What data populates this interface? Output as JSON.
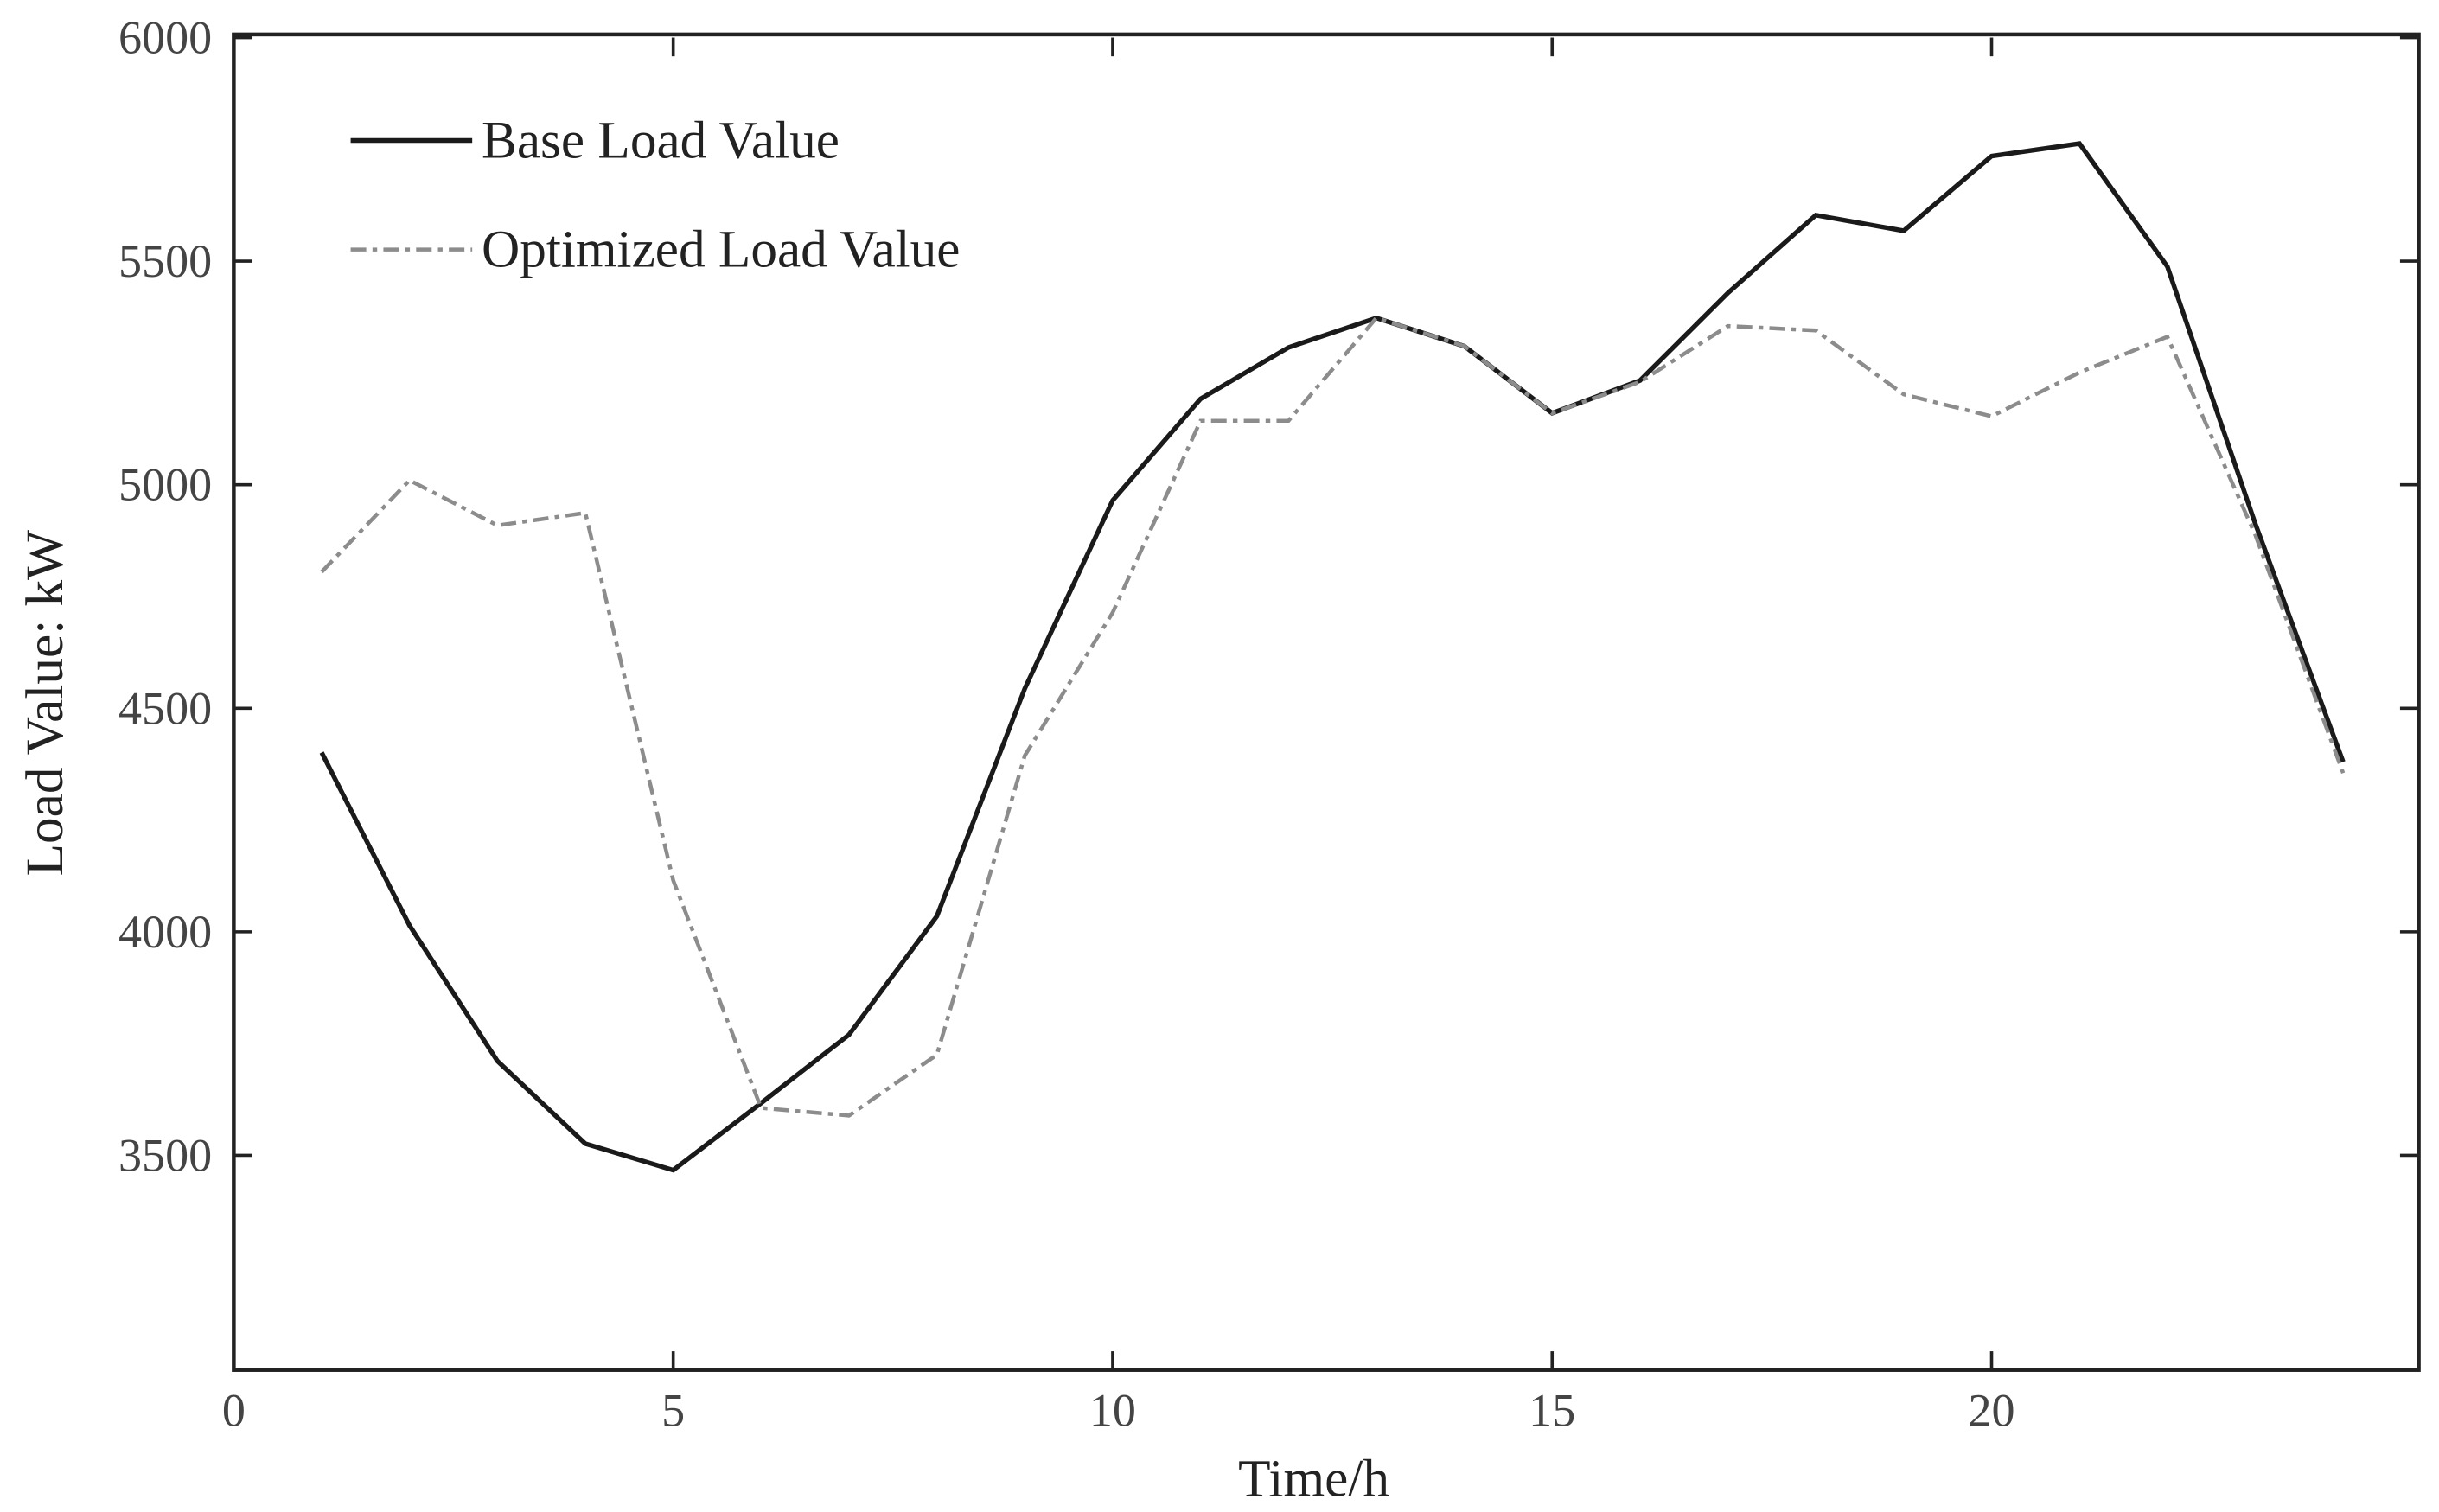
{
  "chart_data": {
    "type": "line",
    "x_label": "Time/h",
    "y_label": "Load Value: kW",
    "x": [
      1,
      2,
      3,
      4,
      5,
      6,
      7,
      8,
      9,
      10,
      11,
      12,
      13,
      14,
      15,
      16,
      17,
      18,
      19,
      20,
      21,
      22,
      23,
      24
    ],
    "series": [
      {
        "name": "Base Load Value",
        "color": "#1a1a1a",
        "dash": "solid",
        "values": [
          4401,
          4014,
          3711,
          3526,
          3467,
          3617,
          3770,
          4035,
          4544,
          4965,
          5192,
          5307,
          5373,
          5310,
          5160,
          5233,
          5429,
          5603,
          5568,
          5735,
          5763,
          5488,
          4913,
          4380
        ]
      },
      {
        "name": "Optimized Load Value",
        "color": "#8c8c8c",
        "dash": "dashdot",
        "values": [
          4805,
          5010,
          4909,
          4937,
          4115,
          3606,
          3589,
          3725,
          4394,
          4714,
          5143,
          5143,
          5373,
          5310,
          5160,
          5230,
          5355,
          5345,
          5202,
          5153,
          5251,
          5331,
          4888,
          4355
        ]
      }
    ],
    "xlim": [
      0,
      24.86
    ],
    "ylim": [
      3020,
      6000
    ],
    "xticks": [
      0,
      5,
      10,
      15,
      20
    ],
    "yticks": [
      3500,
      4000,
      4500,
      5000,
      5500,
      6000
    ],
    "legend": "upper left",
    "grid": false
  }
}
